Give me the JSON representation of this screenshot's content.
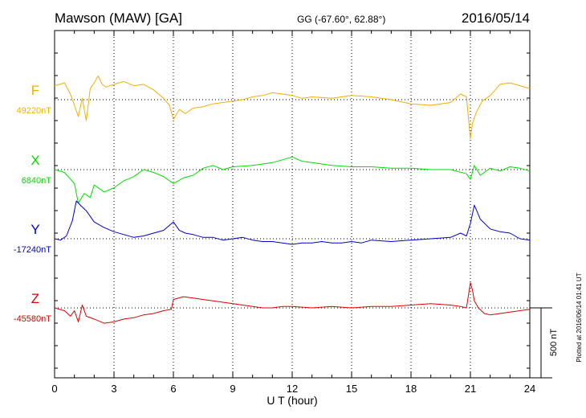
{
  "header": {
    "station": "Mawson (MAW)  [GA]",
    "coords": "GG (-67.60°,  62.88°)",
    "date": "2016/05/14"
  },
  "footer": {
    "plotted": "Plotted at 2016/06/14 01:41  UT"
  },
  "chart_data": {
    "type": "line",
    "title": "Mawson (MAW)  [GA]",
    "xlabel": "U T (hour)",
    "ylabel": "",
    "xlim": [
      0,
      24
    ],
    "xticks": [
      0,
      3,
      6,
      9,
      12,
      15,
      18,
      21,
      24
    ],
    "grid": true,
    "scale_bar": {
      "label": "500 nT",
      "value_nT": 500
    },
    "series": [
      {
        "name": "F",
        "baseline_label": "49220nT",
        "baseline_nT": 49220,
        "color": "#f0b000",
        "x": [
          0,
          0.5,
          0.8,
          1.0,
          1.2,
          1.4,
          1.6,
          1.8,
          2.0,
          2.2,
          2.4,
          2.6,
          3.0,
          3.5,
          4.0,
          4.5,
          5.0,
          5.5,
          5.8,
          6.0,
          6.3,
          6.6,
          7.0,
          7.5,
          8.0,
          8.5,
          9.0,
          9.5,
          10.0,
          10.5,
          11.0,
          11.5,
          12.0,
          12.5,
          13.0,
          14.0,
          15.0,
          16.0,
          17.0,
          18.0,
          19.0,
          20.0,
          20.5,
          20.8,
          21.0,
          21.1,
          21.3,
          21.6,
          22.0,
          22.5,
          23.0,
          23.5,
          24.0
        ],
        "y": [
          49320,
          49340,
          49260,
          49180,
          49100,
          49230,
          49070,
          49300,
          49340,
          49390,
          49330,
          49310,
          49330,
          49350,
          49320,
          49330,
          49290,
          49230,
          49180,
          49080,
          49150,
          49120,
          49160,
          49170,
          49190,
          49200,
          49210,
          49220,
          49240,
          49250,
          49270,
          49260,
          49250,
          49230,
          49240,
          49230,
          49250,
          49240,
          49220,
          49190,
          49180,
          49200,
          49260,
          49240,
          48940,
          49050,
          49130,
          49210,
          49250,
          49330,
          49340,
          49320,
          49300
        ]
      },
      {
        "name": "X",
        "baseline_label": "6840nT",
        "baseline_nT": 6840,
        "color": "#00dd00",
        "x": [
          0,
          0.5,
          1.0,
          1.2,
          1.5,
          1.8,
          2.0,
          2.5,
          3.0,
          3.5,
          4.0,
          4.5,
          5.0,
          5.5,
          6.0,
          6.5,
          7.0,
          7.5,
          8.0,
          8.5,
          9.0,
          10.0,
          11.0,
          11.5,
          12.0,
          12.5,
          13.0,
          14.0,
          15.0,
          16.0,
          17.0,
          18.0,
          19.0,
          20.0,
          20.8,
          21.0,
          21.2,
          21.5,
          22.0,
          22.5,
          23.0,
          23.5,
          24.0
        ],
        "y": [
          6840,
          6820,
          6740,
          6600,
          6670,
          6640,
          6730,
          6680,
          6710,
          6760,
          6790,
          6840,
          6820,
          6790,
          6740,
          6780,
          6800,
          6850,
          6870,
          6840,
          6860,
          6870,
          6890,
          6910,
          6930,
          6900,
          6890,
          6870,
          6860,
          6860,
          6850,
          6850,
          6840,
          6840,
          6810,
          6770,
          6870,
          6800,
          6850,
          6830,
          6860,
          6850,
          6830
        ]
      },
      {
        "name": "Y",
        "baseline_label": "-17240nT",
        "baseline_nT": -17240,
        "color": "#0000cc",
        "x": [
          0,
          0.3,
          0.6,
          0.9,
          1.1,
          1.3,
          1.6,
          2.0,
          2.5,
          3.0,
          3.5,
          4.0,
          4.5,
          5.0,
          5.5,
          6.0,
          6.3,
          6.6,
          7.0,
          7.5,
          8.0,
          8.5,
          9.0,
          9.5,
          10.0,
          10.5,
          11.0,
          11.5,
          12.0,
          12.5,
          13.0,
          13.5,
          14.0,
          14.5,
          15.0,
          15.5,
          16.0,
          17.0,
          18.0,
          19.0,
          20.0,
          20.5,
          20.8,
          21.0,
          21.2,
          21.5,
          22.0,
          22.5,
          23.0,
          23.5,
          24.0
        ],
        "y": [
          -17240,
          -17250,
          -17220,
          -17110,
          -16970,
          -17000,
          -17040,
          -17120,
          -17160,
          -17190,
          -17210,
          -17230,
          -17220,
          -17200,
          -17180,
          -17120,
          -17180,
          -17200,
          -17210,
          -17230,
          -17230,
          -17250,
          -17240,
          -17230,
          -17250,
          -17260,
          -17260,
          -17270,
          -17280,
          -17270,
          -17270,
          -17260,
          -17270,
          -17270,
          -17260,
          -17270,
          -17250,
          -17260,
          -17250,
          -17240,
          -17230,
          -17200,
          -17220,
          -17130,
          -17000,
          -17100,
          -17170,
          -17190,
          -17200,
          -17240,
          -17250
        ]
      },
      {
        "name": "Z",
        "baseline_label": "-45580nT",
        "baseline_nT": -45580,
        "color": "#dd0000",
        "x": [
          0,
          0.5,
          0.8,
          1.0,
          1.2,
          1.4,
          1.6,
          2.0,
          2.5,
          3.0,
          3.5,
          4.0,
          4.5,
          5.0,
          5.5,
          5.9,
          6.0,
          6.5,
          7.0,
          7.5,
          8.0,
          8.5,
          9.0,
          9.5,
          10.0,
          10.5,
          11.0,
          11.5,
          12.0,
          13.0,
          14.0,
          15.0,
          16.0,
          17.0,
          18.0,
          19.0,
          20.0,
          20.5,
          20.8,
          21.0,
          21.1,
          21.2,
          21.4,
          21.7,
          22.0,
          22.5,
          23.0,
          23.5,
          24.0
        ],
        "y": [
          -45580,
          -45600,
          -45640,
          -45600,
          -45680,
          -45560,
          -45640,
          -45660,
          -45690,
          -45680,
          -45660,
          -45650,
          -45630,
          -45620,
          -45600,
          -45590,
          -45520,
          -45500,
          -45510,
          -45520,
          -45530,
          -45540,
          -45550,
          -45560,
          -45570,
          -45580,
          -45580,
          -45570,
          -45570,
          -45580,
          -45570,
          -45580,
          -45570,
          -45570,
          -45560,
          -45550,
          -45560,
          -45570,
          -45580,
          -45400,
          -45450,
          -45530,
          -45580,
          -45620,
          -45630,
          -45620,
          -45610,
          -45600,
          -45590
        ]
      }
    ]
  }
}
